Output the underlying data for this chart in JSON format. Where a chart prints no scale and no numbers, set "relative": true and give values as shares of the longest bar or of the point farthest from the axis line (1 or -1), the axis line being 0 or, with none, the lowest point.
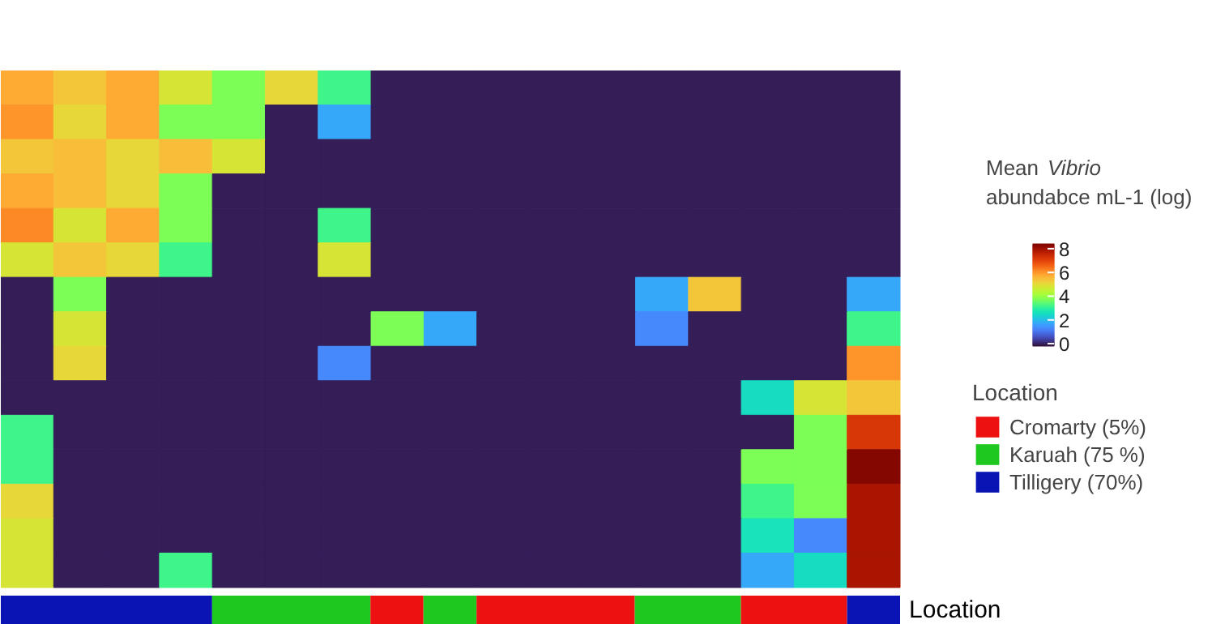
{
  "chart_data": [
    {
      "type": "heatmap",
      "clabel": "Mean Vibrio abundabce mL-1 (log)",
      "clim": [
        -0.2,
        8.4
      ],
      "cticks": [
        0,
        2,
        4,
        6,
        8
      ],
      "tick_labels": false,
      "categories": [
        null,
        null,
        null,
        null,
        null,
        null,
        null,
        null,
        null,
        null,
        null,
        null,
        null,
        null,
        null,
        null,
        null
      ],
      "y_categories": [
        null,
        null,
        null,
        null,
        null,
        null,
        null,
        null,
        null,
        null,
        null,
        null,
        null,
        null,
        null
      ],
      "cells": [
        [
          5.8,
          5.4,
          5.8,
          4.8,
          3.8,
          5.1,
          3.2,
          0,
          0,
          0,
          0,
          0,
          0,
          0,
          0,
          0,
          0
        ],
        [
          6.1,
          5.1,
          5.8,
          3.8,
          3.8,
          0,
          1.8,
          0,
          0,
          0,
          0,
          0,
          0,
          0,
          0,
          0,
          0
        ],
        [
          5.4,
          5.5,
          5.1,
          5.5,
          4.8,
          0,
          0,
          0,
          0,
          0,
          0,
          0,
          0,
          0,
          0,
          0,
          0
        ],
        [
          5.8,
          5.5,
          5.1,
          3.8,
          0,
          0,
          0,
          0,
          0,
          0,
          0,
          0,
          0,
          0,
          0,
          0,
          0
        ],
        [
          6.2,
          4.8,
          5.8,
          3.8,
          0,
          0,
          3.2,
          0,
          0,
          0,
          0,
          0,
          0,
          0,
          0,
          0,
          0
        ],
        [
          4.8,
          5.4,
          5.1,
          3.2,
          0,
          0,
          4.8,
          0,
          0,
          0,
          0,
          0,
          0,
          0,
          0,
          0,
          0
        ],
        [
          0,
          3.8,
          0,
          0,
          0,
          0,
          0,
          0,
          0,
          0,
          0,
          0,
          1.8,
          5.4,
          0,
          0,
          1.8
        ],
        [
          0,
          4.8,
          0,
          0,
          0,
          0,
          0,
          3.8,
          1.8,
          0,
          0,
          0,
          1.3,
          0,
          0,
          0,
          3.2
        ],
        [
          0,
          5.1,
          0,
          0,
          0,
          0,
          1.3,
          0,
          0,
          0,
          0,
          0,
          0,
          0,
          0,
          0,
          6.1
        ],
        [
          0,
          0,
          0,
          0,
          0,
          0,
          0,
          0,
          0,
          0,
          0,
          0,
          0,
          0,
          2.5,
          4.8,
          5.4
        ],
        [
          3.2,
          0,
          0,
          0,
          0,
          0,
          0,
          0,
          0,
          0,
          0,
          0,
          0,
          0,
          0,
          3.8,
          7.3
        ],
        [
          3.2,
          0,
          0,
          0,
          0,
          0,
          0,
          0,
          0,
          0,
          0,
          0,
          0,
          0,
          3.8,
          3.8,
          8.3
        ],
        [
          5.1,
          0,
          0,
          0,
          0,
          0,
          0,
          0,
          0,
          0,
          0,
          0,
          0,
          0,
          3.2,
          3.8,
          7.9
        ],
        [
          4.9,
          0,
          0,
          0,
          0,
          0,
          0,
          0,
          0,
          0,
          0,
          0,
          0,
          0,
          2.7,
          1.3,
          7.9
        ],
        [
          4.9,
          0,
          0,
          3.2,
          0,
          0,
          0,
          0,
          0,
          0,
          0,
          0,
          0,
          0,
          1.8,
          2.5,
          7.9
        ]
      ]
    },
    {
      "type": "bar",
      "stacked": true,
      "orientation": "horizontal",
      "relative": true,
      "categories": [
        "Location"
      ],
      "legend_title": "Location",
      "legend": "right",
      "series": [
        {
          "color": "#0a14b4",
          "values": [
            0.235
          ]
        },
        {
          "color": "#1ec81e",
          "values": [
            0.176
          ]
        },
        {
          "name": "Cromarty (5%)",
          "color": "#ee1111",
          "values": [
            0.059
          ]
        },
        {
          "name": "Karuah (75 %)",
          "color": "#1ec81e",
          "values": [
            0.059
          ]
        },
        {
          "color": "#ee1111",
          "values": [
            0.176
          ]
        },
        {
          "color": "#1ec81e",
          "values": [
            0.118
          ]
        },
        {
          "color": "#ee1111",
          "values": [
            0.118
          ]
        },
        {
          "name": "Tilligery (70%)",
          "color": "#0a14b4",
          "values": [
            0.059
          ]
        }
      ]
    }
  ]
}
